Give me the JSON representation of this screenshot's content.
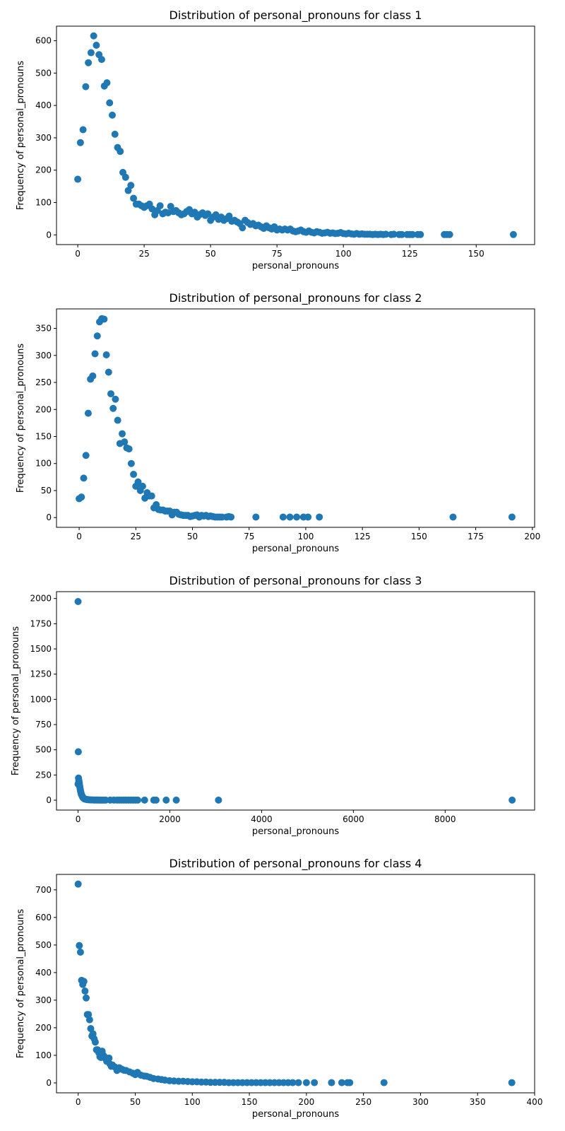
{
  "chart_data": [
    {
      "type": "scatter",
      "title": "Distribution of personal_pronouns for class 1",
      "xlabel": "personal_pronouns",
      "ylabel": "Frequency of personal_pronouns",
      "xlim": [
        -8,
        172
      ],
      "ylim": [
        -30,
        645
      ],
      "xticks": [
        0,
        25,
        50,
        75,
        100,
        125,
        150
      ],
      "yticks": [
        0,
        100,
        200,
        300,
        400,
        500,
        600
      ],
      "grid": false,
      "color": "#1f77b4",
      "points": [
        [
          0,
          172
        ],
        [
          1,
          285
        ],
        [
          2,
          325
        ],
        [
          3,
          458
        ],
        [
          4,
          532
        ],
        [
          5,
          563
        ],
        [
          6,
          615
        ],
        [
          7,
          586
        ],
        [
          8,
          557
        ],
        [
          9,
          542
        ],
        [
          10,
          460
        ],
        [
          11,
          470
        ],
        [
          12,
          408
        ],
        [
          13,
          370
        ],
        [
          14,
          311
        ],
        [
          15,
          270
        ],
        [
          16,
          258
        ],
        [
          17,
          193
        ],
        [
          18,
          178
        ],
        [
          19,
          137
        ],
        [
          20,
          153
        ],
        [
          21,
          113
        ],
        [
          22,
          95
        ],
        [
          23,
          95
        ],
        [
          24,
          90
        ],
        [
          25,
          85
        ],
        [
          26,
          90
        ],
        [
          27,
          95
        ],
        [
          28,
          80
        ],
        [
          29,
          62
        ],
        [
          30,
          75
        ],
        [
          31,
          90
        ],
        [
          32,
          65
        ],
        [
          33,
          70
        ],
        [
          34,
          68
        ],
        [
          35,
          88
        ],
        [
          36,
          72
        ],
        [
          37,
          75
        ],
        [
          38,
          68
        ],
        [
          39,
          62
        ],
        [
          40,
          65
        ],
        [
          41,
          72
        ],
        [
          42,
          78
        ],
        [
          43,
          65
        ],
        [
          44,
          70
        ],
        [
          45,
          55
        ],
        [
          46,
          63
        ],
        [
          47,
          68
        ],
        [
          48,
          60
        ],
        [
          49,
          65
        ],
        [
          50,
          45
        ],
        [
          51,
          55
        ],
        [
          52,
          62
        ],
        [
          53,
          48
        ],
        [
          54,
          55
        ],
        [
          55,
          45
        ],
        [
          56,
          50
        ],
        [
          57,
          58
        ],
        [
          58,
          42
        ],
        [
          59,
          45
        ],
        [
          60,
          40
        ],
        [
          61,
          35
        ],
        [
          62,
          22
        ],
        [
          63,
          45
        ],
        [
          64,
          38
        ],
        [
          65,
          32
        ],
        [
          66,
          35
        ],
        [
          67,
          28
        ],
        [
          68,
          30
        ],
        [
          69,
          25
        ],
        [
          70,
          20
        ],
        [
          71,
          28
        ],
        [
          72,
          22
        ],
        [
          73,
          18
        ],
        [
          74,
          25
        ],
        [
          75,
          15
        ],
        [
          76,
          18
        ],
        [
          77,
          15
        ],
        [
          78,
          18
        ],
        [
          79,
          15
        ],
        [
          80,
          18
        ],
        [
          81,
          12
        ],
        [
          82,
          10
        ],
        [
          83,
          12
        ],
        [
          84,
          15
        ],
        [
          85,
          10
        ],
        [
          86,
          8
        ],
        [
          87,
          12
        ],
        [
          88,
          8
        ],
        [
          89,
          6
        ],
        [
          90,
          10
        ],
        [
          91,
          8
        ],
        [
          92,
          5
        ],
        [
          93,
          6
        ],
        [
          94,
          8
        ],
        [
          95,
          5
        ],
        [
          96,
          6
        ],
        [
          97,
          4
        ],
        [
          98,
          5
        ],
        [
          99,
          7
        ],
        [
          100,
          4
        ],
        [
          101,
          3
        ],
        [
          102,
          5
        ],
        [
          103,
          3
        ],
        [
          104,
          2
        ],
        [
          105,
          4
        ],
        [
          106,
          2
        ],
        [
          107,
          3
        ],
        [
          108,
          2
        ],
        [
          109,
          2
        ],
        [
          110,
          2
        ],
        [
          111,
          1
        ],
        [
          112,
          2
        ],
        [
          113,
          1
        ],
        [
          114,
          2
        ],
        [
          115,
          1
        ],
        [
          116,
          2
        ],
        [
          118,
          1
        ],
        [
          119,
          2
        ],
        [
          121,
          1
        ],
        [
          122,
          1
        ],
        [
          124,
          1
        ],
        [
          125,
          1
        ],
        [
          126,
          1
        ],
        [
          128,
          1
        ],
        [
          129,
          1
        ],
        [
          138,
          1
        ],
        [
          139,
          1
        ],
        [
          140,
          1
        ],
        [
          164,
          1
        ]
      ]
    },
    {
      "type": "scatter",
      "title": "Distribution of personal_pronouns for class 2",
      "xlabel": "personal_pronouns",
      "ylabel": "Frequency of personal_pronouns",
      "xlim": [
        -10,
        201
      ],
      "ylim": [
        -18,
        386
      ],
      "xticks": [
        0,
        25,
        50,
        75,
        100,
        125,
        150,
        175,
        200
      ],
      "yticks": [
        0,
        50,
        100,
        150,
        200,
        250,
        300,
        350
      ],
      "grid": false,
      "color": "#1f77b4",
      "points": [
        [
          0,
          35
        ],
        [
          1,
          38
        ],
        [
          2,
          73
        ],
        [
          3,
          115
        ],
        [
          4,
          193
        ],
        [
          5,
          256
        ],
        [
          6,
          262
        ],
        [
          7,
          303
        ],
        [
          8,
          336
        ],
        [
          9,
          362
        ],
        [
          10,
          368
        ],
        [
          11,
          367
        ],
        [
          12,
          301
        ],
        [
          13,
          269
        ],
        [
          14,
          229
        ],
        [
          15,
          202
        ],
        [
          16,
          219
        ],
        [
          17,
          180
        ],
        [
          18,
          137
        ],
        [
          19,
          155
        ],
        [
          20,
          140
        ],
        [
          21,
          129
        ],
        [
          22,
          127
        ],
        [
          23,
          100
        ],
        [
          24,
          80
        ],
        [
          25,
          58
        ],
        [
          26,
          66
        ],
        [
          27,
          50
        ],
        [
          28,
          58
        ],
        [
          29,
          36
        ],
        [
          30,
          46
        ],
        [
          31,
          40
        ],
        [
          32,
          40
        ],
        [
          33,
          18
        ],
        [
          34,
          24
        ],
        [
          35,
          15
        ],
        [
          36,
          14
        ],
        [
          37,
          14
        ],
        [
          38,
          12
        ],
        [
          39,
          12
        ],
        [
          40,
          12
        ],
        [
          41,
          5
        ],
        [
          42,
          10
        ],
        [
          43,
          10
        ],
        [
          44,
          6
        ],
        [
          45,
          5
        ],
        [
          46,
          4
        ],
        [
          47,
          4
        ],
        [
          48,
          4
        ],
        [
          49,
          2
        ],
        [
          50,
          3
        ],
        [
          51,
          4
        ],
        [
          52,
          5
        ],
        [
          53,
          1
        ],
        [
          54,
          4
        ],
        [
          55,
          3
        ],
        [
          56,
          4
        ],
        [
          57,
          2
        ],
        [
          58,
          3
        ],
        [
          59,
          2
        ],
        [
          60,
          1
        ],
        [
          61,
          1
        ],
        [
          62,
          1
        ],
        [
          63,
          1
        ],
        [
          65,
          1
        ],
        [
          66,
          2
        ],
        [
          67,
          1
        ],
        [
          78,
          1
        ],
        [
          90,
          1
        ],
        [
          93,
          1
        ],
        [
          96,
          1
        ],
        [
          99,
          1
        ],
        [
          101,
          1
        ],
        [
          106,
          1
        ],
        [
          165,
          1
        ],
        [
          191,
          1
        ]
      ]
    },
    {
      "type": "scatter",
      "title": "Distribution of personal_pronouns for class 3",
      "xlabel": "personal_pronouns",
      "ylabel": "Frequency of personal_pronouns",
      "xlim": [
        -470,
        9950
      ],
      "ylim": [
        -98,
        2068
      ],
      "xticks": [
        0,
        2000,
        4000,
        6000,
        8000
      ],
      "yticks": [
        0,
        250,
        500,
        750,
        1000,
        1250,
        1500,
        1750,
        2000
      ],
      "grid": false,
      "color": "#1f77b4",
      "points": [
        [
          0,
          1970
        ],
        [
          0,
          160
        ],
        [
          5,
          480
        ],
        [
          10,
          220
        ],
        [
          15,
          200
        ],
        [
          20,
          190
        ],
        [
          25,
          175
        ],
        [
          30,
          160
        ],
        [
          35,
          140
        ],
        [
          40,
          130
        ],
        [
          45,
          115
        ],
        [
          50,
          100
        ],
        [
          55,
          90
        ],
        [
          60,
          80
        ],
        [
          65,
          70
        ],
        [
          70,
          60
        ],
        [
          80,
          50
        ],
        [
          90,
          40
        ],
        [
          100,
          32
        ],
        [
          110,
          25
        ],
        [
          120,
          20
        ],
        [
          130,
          15
        ],
        [
          145,
          12
        ],
        [
          160,
          10
        ],
        [
          180,
          8
        ],
        [
          200,
          6
        ],
        [
          220,
          5
        ],
        [
          250,
          4
        ],
        [
          280,
          3
        ],
        [
          310,
          3
        ],
        [
          340,
          2
        ],
        [
          370,
          2
        ],
        [
          400,
          2
        ],
        [
          430,
          2
        ],
        [
          460,
          1
        ],
        [
          490,
          1
        ],
        [
          520,
          1
        ],
        [
          560,
          1
        ],
        [
          600,
          1
        ],
        [
          700,
          1
        ],
        [
          780,
          1
        ],
        [
          850,
          1
        ],
        [
          900,
          1
        ],
        [
          950,
          1
        ],
        [
          1000,
          1
        ],
        [
          1050,
          1
        ],
        [
          1100,
          1
        ],
        [
          1150,
          1
        ],
        [
          1200,
          1
        ],
        [
          1250,
          1
        ],
        [
          1300,
          1
        ],
        [
          1450,
          1
        ],
        [
          1650,
          1
        ],
        [
          1700,
          1
        ],
        [
          1920,
          1
        ],
        [
          2140,
          1
        ],
        [
          3060,
          1
        ],
        [
          9460,
          1
        ]
      ]
    },
    {
      "type": "scatter",
      "title": "Distribution of personal_pronouns for class 4",
      "xlabel": "personal_pronouns",
      "ylabel": "Frequency of personal_pronouns",
      "xlim": [
        -19,
        400
      ],
      "ylim": [
        -36,
        756
      ],
      "xticks": [
        0,
        50,
        100,
        150,
        200,
        250,
        300,
        350,
        400
      ],
      "yticks": [
        0,
        100,
        200,
        300,
        400,
        500,
        600,
        700
      ],
      "grid": false,
      "color": "#1f77b4",
      "points": [
        [
          0,
          721
        ],
        [
          1,
          498
        ],
        [
          2,
          474
        ],
        [
          3,
          372
        ],
        [
          4,
          357
        ],
        [
          5,
          368
        ],
        [
          6,
          333
        ],
        [
          7,
          308
        ],
        [
          8,
          248
        ],
        [
          9,
          248
        ],
        [
          10,
          229
        ],
        [
          11,
          197
        ],
        [
          12,
          170
        ],
        [
          13,
          178
        ],
        [
          14,
          160
        ],
        [
          15,
          148
        ],
        [
          16,
          120
        ],
        [
          17,
          120
        ],
        [
          18,
          110
        ],
        [
          19,
          95
        ],
        [
          20,
          92
        ],
        [
          21,
          115
        ],
        [
          22,
          100
        ],
        [
          23,
          95
        ],
        [
          24,
          88
        ],
        [
          25,
          78
        ],
        [
          26,
          82
        ],
        [
          27,
          90
        ],
        [
          28,
          68
        ],
        [
          29,
          60
        ],
        [
          30,
          65
        ],
        [
          32,
          58
        ],
        [
          34,
          45
        ],
        [
          36,
          55
        ],
        [
          38,
          50
        ],
        [
          40,
          46
        ],
        [
          42,
          45
        ],
        [
          45,
          40
        ],
        [
          48,
          35
        ],
        [
          50,
          30
        ],
        [
          52,
          38
        ],
        [
          55,
          28
        ],
        [
          58,
          25
        ],
        [
          60,
          24
        ],
        [
          63,
          20
        ],
        [
          66,
          16
        ],
        [
          70,
          14
        ],
        [
          73,
          12
        ],
        [
          76,
          10
        ],
        [
          80,
          8
        ],
        [
          84,
          7
        ],
        [
          88,
          6
        ],
        [
          92,
          6
        ],
        [
          96,
          5
        ],
        [
          100,
          4
        ],
        [
          104,
          4
        ],
        [
          108,
          3
        ],
        [
          112,
          3
        ],
        [
          116,
          2
        ],
        [
          120,
          2
        ],
        [
          124,
          2
        ],
        [
          128,
          2
        ],
        [
          132,
          1
        ],
        [
          136,
          1
        ],
        [
          140,
          1
        ],
        [
          144,
          1
        ],
        [
          148,
          1
        ],
        [
          152,
          1
        ],
        [
          156,
          1
        ],
        [
          160,
          1
        ],
        [
          164,
          1
        ],
        [
          168,
          1
        ],
        [
          172,
          1
        ],
        [
          176,
          1
        ],
        [
          180,
          1
        ],
        [
          184,
          1
        ],
        [
          188,
          1
        ],
        [
          193,
          1
        ],
        [
          200,
          1
        ],
        [
          207,
          1
        ],
        [
          222,
          1
        ],
        [
          231,
          1
        ],
        [
          236,
          1
        ],
        [
          238,
          1
        ],
        [
          268,
          1
        ],
        [
          380,
          1
        ]
      ]
    }
  ]
}
